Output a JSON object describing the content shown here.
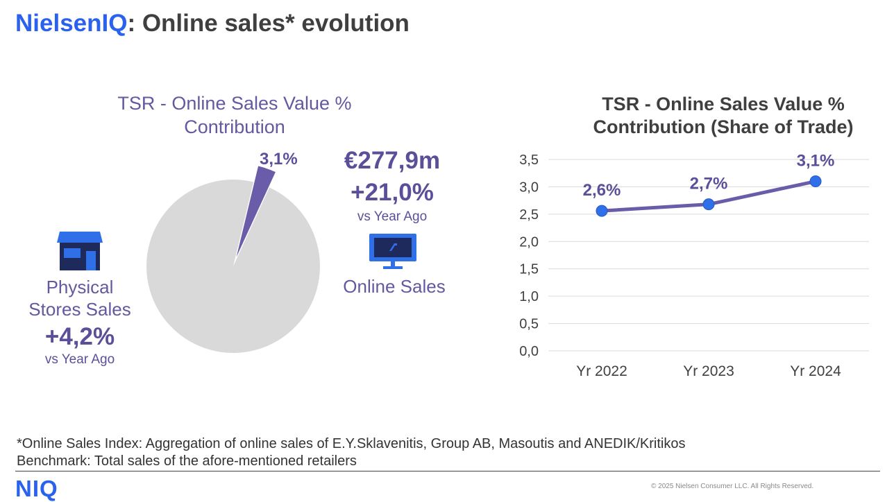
{
  "header": {
    "brand": "NielsenIQ",
    "title_rest": ": Online sales* evolution"
  },
  "pie": {
    "title": "TSR - Online Sales Value % Contribution",
    "slice_label": "3,1%",
    "online": {
      "value": "€277,9m",
      "growth": "+21,0%",
      "note": "vs Year Ago",
      "label": "Online Sales",
      "icon": "monitor-cart-icon"
    },
    "physical": {
      "label_line1": "Physical",
      "label_line2": "Stores Sales",
      "growth": "+4,2%",
      "note": "vs Year Ago",
      "icon": "store-icon"
    }
  },
  "line": {
    "title_line1": "TSR - Online Sales Value %",
    "title_line2": "Contribution (Share of Trade)"
  },
  "chart_data": [
    {
      "type": "pie",
      "title": "TSR - Online Sales Value % Contribution",
      "slices": [
        {
          "name": "Online Sales",
          "value": 3.1,
          "label": "3,1%",
          "color": "#6a5ca8"
        },
        {
          "name": "Physical Stores Sales",
          "value": 96.9,
          "color": "#d9d9d9"
        }
      ]
    },
    {
      "type": "line",
      "title": "TSR - Online Sales Value % Contribution (Share of Trade)",
      "categories": [
        "Yr 2022",
        "Yr 2023",
        "Yr 2024"
      ],
      "series": [
        {
          "values": [
            2.56,
            2.68,
            3.1
          ],
          "labels": [
            "2,6%",
            "2,7%",
            "3,1%"
          ],
          "line_color": "#6a5ca8",
          "marker_color": "#2f6fe8"
        }
      ],
      "ylim": [
        0,
        3.5
      ],
      "y_ticks": [
        "0,0",
        "0,5",
        "1,0",
        "1,5",
        "2,0",
        "2,5",
        "3,0",
        "3,5"
      ],
      "grid": true,
      "legend": "none"
    }
  ],
  "footer": {
    "note1": "*Online Sales Index: Aggregation of online sales of E.Y.Sklavenitis, Group AB, Masoutis and ANEDIK/Kritikos",
    "note2": "Benchmark: Total sales of the afore-mentioned retailers",
    "logo": "NIQ",
    "copyright": "© 2025 Nielsen Consumer LLC. All Rights Reserved."
  }
}
